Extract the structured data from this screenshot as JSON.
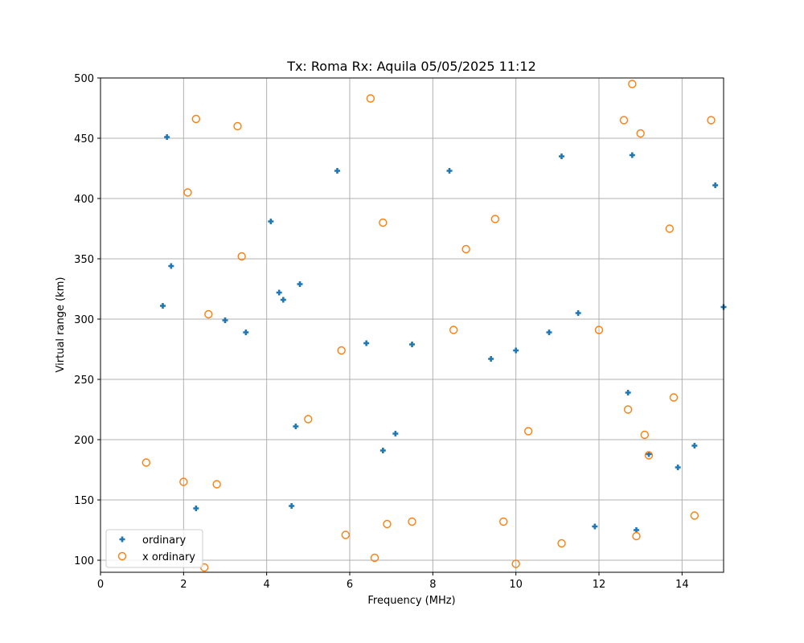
{
  "chart_data": {
    "type": "scatter",
    "title": "Tx: Roma Rx: Aquila 05/05/2025 11:12",
    "xlabel": "Frequency (MHz)",
    "ylabel": "Virtual range (km)",
    "xlim": [
      0,
      15
    ],
    "ylim": [
      90,
      500
    ],
    "xticks": [
      0,
      2,
      4,
      6,
      8,
      10,
      12,
      14
    ],
    "yticks": [
      100,
      150,
      200,
      250,
      300,
      350,
      400,
      450,
      500
    ],
    "grid": true,
    "legend_position": "lower left",
    "series": [
      {
        "name": "ordinary",
        "marker": "plus",
        "color": "#1f77b4",
        "points": [
          [
            1.6,
            451
          ],
          [
            1.7,
            344
          ],
          [
            1.5,
            311
          ],
          [
            2.3,
            143
          ],
          [
            3.0,
            299
          ],
          [
            3.5,
            289
          ],
          [
            4.1,
            381
          ],
          [
            4.3,
            322
          ],
          [
            4.4,
            316
          ],
          [
            4.8,
            329
          ],
          [
            4.7,
            211
          ],
          [
            4.6,
            145
          ],
          [
            5.7,
            423
          ],
          [
            6.4,
            280
          ],
          [
            6.8,
            191
          ],
          [
            7.1,
            205
          ],
          [
            7.5,
            279
          ],
          [
            8.4,
            423
          ],
          [
            9.4,
            267
          ],
          [
            10.0,
            274
          ],
          [
            10.8,
            289
          ],
          [
            11.1,
            435
          ],
          [
            11.5,
            305
          ],
          [
            11.9,
            128
          ],
          [
            12.8,
            436
          ],
          [
            12.7,
            239
          ],
          [
            12.9,
            125
          ],
          [
            13.2,
            188
          ],
          [
            13.9,
            177
          ],
          [
            14.3,
            195
          ],
          [
            14.8,
            411
          ],
          [
            15.0,
            310
          ]
        ]
      },
      {
        "name": "x ordinary",
        "marker": "circle-open",
        "color": "#ff7f0e",
        "points": [
          [
            1.1,
            181
          ],
          [
            2.0,
            165
          ],
          [
            2.3,
            466
          ],
          [
            2.1,
            405
          ],
          [
            2.5,
            94
          ],
          [
            2.6,
            304
          ],
          [
            2.8,
            163
          ],
          [
            3.3,
            460
          ],
          [
            3.4,
            352
          ],
          [
            5.0,
            217
          ],
          [
            5.8,
            274
          ],
          [
            5.9,
            121
          ],
          [
            6.5,
            483
          ],
          [
            6.6,
            102
          ],
          [
            6.8,
            380
          ],
          [
            6.9,
            130
          ],
          [
            7.5,
            132
          ],
          [
            8.5,
            291
          ],
          [
            8.8,
            358
          ],
          [
            9.5,
            383
          ],
          [
            9.7,
            132
          ],
          [
            10.0,
            97
          ],
          [
            10.3,
            207
          ],
          [
            11.1,
            114
          ],
          [
            12.0,
            291
          ],
          [
            12.6,
            465
          ],
          [
            12.7,
            225
          ],
          [
            12.8,
            495
          ],
          [
            13.0,
            454
          ],
          [
            13.1,
            204
          ],
          [
            13.2,
            187
          ],
          [
            12.9,
            120
          ],
          [
            13.7,
            375
          ],
          [
            13.8,
            235
          ],
          [
            14.3,
            137
          ],
          [
            14.7,
            465
          ]
        ]
      }
    ]
  },
  "legend": {
    "items": [
      {
        "label": "ordinary",
        "color": "#1f77b4"
      },
      {
        "label": "x ordinary",
        "color": "#ff7f0e"
      }
    ]
  }
}
